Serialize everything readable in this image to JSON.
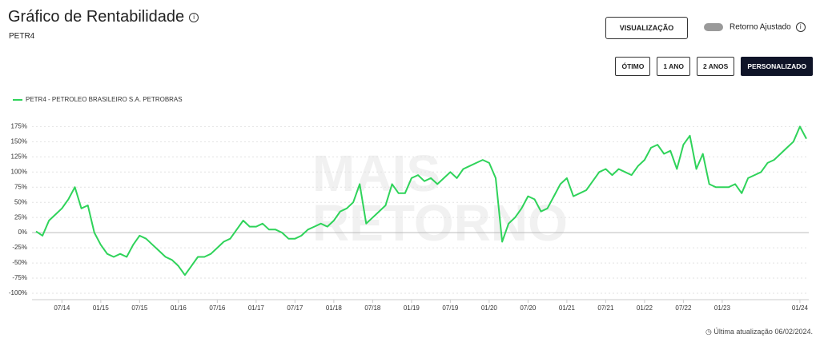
{
  "header": {
    "title": "Gráfico de Rentabilidade",
    "subtitle": "PETR4",
    "view_button": "VISUALIZAÇÃO",
    "toggle_label": "Retorno Ajustado",
    "periods": [
      "ÓTIMO",
      "1 ANO",
      "2 ANOS",
      "PERSONALIZADO"
    ]
  },
  "watermark": [
    "MAIS",
    "RETORNO"
  ],
  "footer": "Última atualização 06/02/2024.",
  "chart_data": {
    "type": "line",
    "grid": true,
    "x": [
      "03/14",
      "04/14",
      "05/14",
      "06/14",
      "07/14",
      "08/14",
      "09/14",
      "10/14",
      "11/14",
      "12/14",
      "01/15",
      "02/15",
      "03/15",
      "04/15",
      "05/15",
      "06/15",
      "07/15",
      "08/15",
      "09/15",
      "10/15",
      "11/15",
      "12/15",
      "01/16",
      "02/16",
      "03/16",
      "04/16",
      "05/16",
      "06/16",
      "07/16",
      "08/16",
      "09/16",
      "10/16",
      "11/16",
      "12/16",
      "01/17",
      "02/17",
      "03/17",
      "04/17",
      "05/17",
      "06/17",
      "07/17",
      "08/17",
      "09/17",
      "10/17",
      "11/17",
      "12/17",
      "01/18",
      "02/18",
      "03/18",
      "04/18",
      "05/18",
      "06/18",
      "07/18",
      "08/18",
      "09/18",
      "10/18",
      "11/18",
      "12/18",
      "01/19",
      "02/19",
      "03/19",
      "04/19",
      "05/19",
      "06/19",
      "07/19",
      "08/19",
      "09/19",
      "10/19",
      "11/19",
      "12/19",
      "01/20",
      "02/20",
      "03/20",
      "04/20",
      "05/20",
      "06/20",
      "07/20",
      "08/20",
      "09/20",
      "10/20",
      "11/20",
      "12/20",
      "01/21",
      "02/21",
      "03/21",
      "04/21",
      "05/21",
      "06/21",
      "07/21",
      "08/21",
      "09/21",
      "10/21",
      "11/21",
      "12/21",
      "01/22",
      "02/22",
      "03/22",
      "04/22",
      "05/22",
      "06/22",
      "07/22",
      "08/22",
      "09/22",
      "10/22",
      "11/22",
      "12/22",
      "01/23",
      "02/23",
      "03/23",
      "04/23",
      "05/23",
      "06/23",
      "07/23",
      "08/23",
      "09/23",
      "10/23",
      "11/23",
      "12/23",
      "01/24",
      "02/24"
    ],
    "xticks": [
      "07/14",
      "01/15",
      "07/15",
      "01/16",
      "07/16",
      "01/17",
      "07/17",
      "01/18",
      "07/18",
      "01/19",
      "07/19",
      "01/20",
      "07/20",
      "01/21",
      "07/21",
      "01/22",
      "07/22",
      "01/23",
      "01/24"
    ],
    "series": [
      {
        "name": "PETR4 - PETROLEO BRASILEIRO S.A. PETROBRAS",
        "color": "#2fd35a",
        "values": [
          2,
          -5,
          20,
          30,
          40,
          55,
          75,
          40,
          45,
          0,
          -20,
          -35,
          -40,
          -35,
          -40,
          -20,
          -5,
          -10,
          -20,
          -30,
          -40,
          -45,
          -55,
          -70,
          -55,
          -40,
          -40,
          -35,
          -25,
          -15,
          -10,
          5,
          20,
          10,
          10,
          15,
          5,
          5,
          0,
          -10,
          -10,
          -5,
          5,
          10,
          15,
          10,
          20,
          35,
          40,
          50,
          80,
          15,
          25,
          35,
          45,
          80,
          65,
          65,
          90,
          95,
          85,
          90,
          80,
          90,
          100,
          90,
          105,
          110,
          115,
          120,
          115,
          90,
          -15,
          15,
          25,
          40,
          60,
          55,
          35,
          40,
          60,
          80,
          90,
          60,
          65,
          70,
          85,
          100,
          105,
          95,
          105,
          100,
          95,
          110,
          120,
          140,
          145,
          130,
          135,
          105,
          145,
          160,
          105,
          130,
          80,
          75,
          75,
          75,
          80,
          65,
          90,
          95,
          100,
          115,
          120,
          130,
          140,
          150,
          175,
          155
        ]
      }
    ],
    "ylim": [
      -100,
      190
    ],
    "yticks": [
      {
        "value": 175,
        "label": "175%"
      },
      {
        "value": 150,
        "label": "150%"
      },
      {
        "value": 125,
        "label": "125%"
      },
      {
        "value": 100,
        "label": "100%"
      },
      {
        "value": 75,
        "label": "75%"
      },
      {
        "value": 50,
        "label": "50%"
      },
      {
        "value": 25,
        "label": "25%"
      },
      {
        "value": 0,
        "label": "0%"
      },
      {
        "value": -25,
        "label": "-25%"
      },
      {
        "value": -50,
        "label": "-50%"
      },
      {
        "value": -75,
        "label": "-75%"
      },
      {
        "value": -100,
        "label": "-100%"
      }
    ]
  }
}
